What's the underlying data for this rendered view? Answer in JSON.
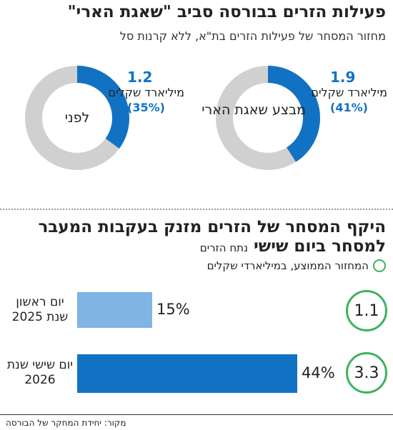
{
  "header": {
    "title": "פעילות הזרים בבורסה סביב \"שאגת הארי\"",
    "subtitle": "מחזור המסחר של פעילות הזרים בת\"א, ללא קרנות סל"
  },
  "donuts": [
    {
      "center": "מבצע שאגת הארי",
      "value": "1.9",
      "unit": "מיליארד שקלים",
      "pct_label": "(41%)"
    },
    {
      "center": "לפני",
      "value": "1.2",
      "unit": "מיליארד שקלים",
      "pct_label": "(35%)"
    }
  ],
  "section2": {
    "title": "היקף המסחר של הזרים מזנק בעקבות המעבר למסחר ביום שישי",
    "tag": "נתח הזרים",
    "legend": "המחזור הממוצע, במיליארדי שקלים"
  },
  "bars": [
    {
      "label": "יום ראשון שנת 2025",
      "pct_label": "15%",
      "avg": "1.1"
    },
    {
      "label": "יום שישי שנת 2026",
      "pct_label": "44%",
      "avg": "3.3"
    }
  ],
  "source": "מקור: יחידת המחקר של הבורסה",
  "colors": {
    "accent": "#1172c4",
    "light_bar": "#7fb4e3",
    "ring_gray": "#d0d0d0",
    "circle_green": "#3db35a"
  },
  "chart_data": [
    {
      "type": "pie",
      "title": "פעילות הזרים בבורסה סביב \"שאגת הארי\"",
      "categories": [
        "מבצע שאגת הארי",
        "לפני"
      ],
      "series": [
        {
          "values": [
            41,
            35
          ]
        }
      ],
      "totals_billion_nis": [
        1.9,
        1.2
      ]
    },
    {
      "type": "bar",
      "title": "היקף המסחר של הזרים מזנק בעקבות המעבר למסחר ביום שישי",
      "categories": [
        "יום ראשון שנת 2025",
        "יום שישי שנת 2026"
      ],
      "series": [
        {
          "name": "נתח הזרים",
          "values": [
            15,
            44
          ]
        },
        {
          "name": "המחזור הממוצע, במיליארדי שקלים",
          "values": [
            1.1,
            3.3
          ]
        }
      ]
    }
  ]
}
